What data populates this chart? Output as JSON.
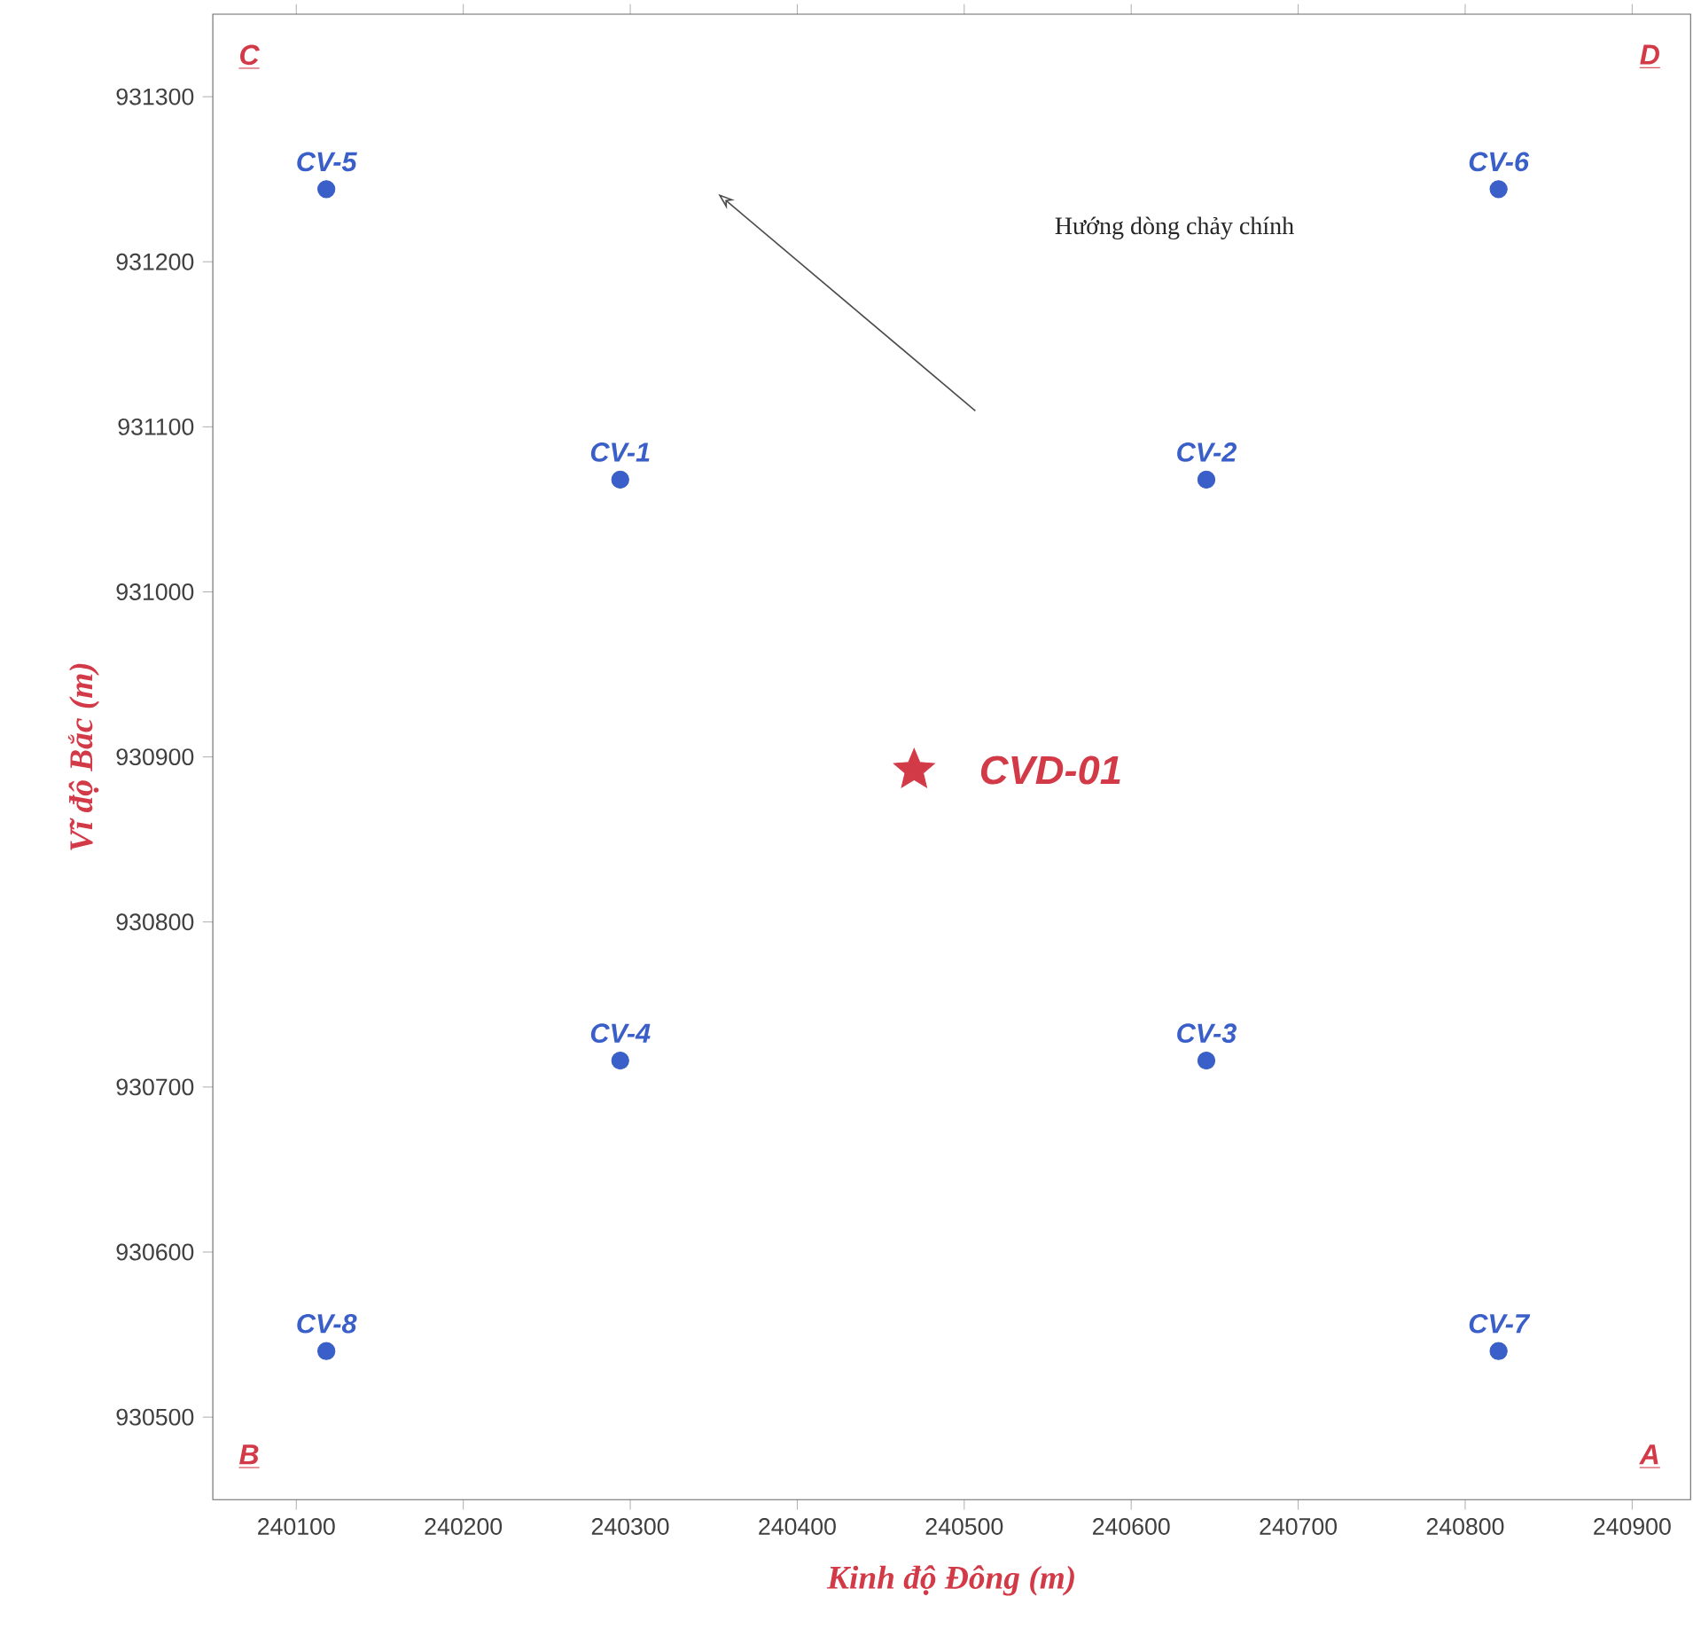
{
  "chart_data": {
    "type": "scatter",
    "xlabel": "Kinh độ Đông (m)",
    "ylabel": "Vĩ độ Bắc (m)",
    "xlim": [
      240050,
      240935
    ],
    "ylim": [
      930450,
      931350
    ],
    "xticks": [
      240100,
      240200,
      240300,
      240400,
      240500,
      240600,
      240700,
      240800,
      240900
    ],
    "yticks": [
      930500,
      930600,
      930700,
      930800,
      930900,
      931000,
      931100,
      931200,
      931300
    ],
    "grid": false,
    "series": [
      {
        "name": "CV-1",
        "color": "#3a5fc8",
        "marker": "circle",
        "x": [
          240294
        ],
        "values": [
          931068
        ]
      },
      {
        "name": "CV-2",
        "color": "#3a5fc8",
        "marker": "circle",
        "x": [
          240645
        ],
        "values": [
          931068
        ]
      },
      {
        "name": "CV-3",
        "color": "#3a5fc8",
        "marker": "circle",
        "x": [
          240645
        ],
        "values": [
          930716
        ]
      },
      {
        "name": "CV-4",
        "color": "#3a5fc8",
        "marker": "circle",
        "x": [
          240294
        ],
        "values": [
          930716
        ]
      },
      {
        "name": "CV-5",
        "color": "#3a5fc8",
        "marker": "circle",
        "x": [
          240118
        ],
        "values": [
          931244
        ]
      },
      {
        "name": "CV-6",
        "color": "#3a5fc8",
        "marker": "circle",
        "x": [
          240820
        ],
        "values": [
          931244
        ]
      },
      {
        "name": "CV-7",
        "color": "#3a5fc8",
        "marker": "circle",
        "x": [
          240820
        ],
        "values": [
          930540
        ]
      },
      {
        "name": "CV-8",
        "color": "#3a5fc8",
        "marker": "circle",
        "x": [
          240118
        ],
        "values": [
          930540
        ]
      },
      {
        "name": "CVD-01",
        "color": "#d33a48",
        "marker": "star",
        "x": [
          240470
        ],
        "values": [
          930892
        ]
      }
    ],
    "annotations": [
      "A",
      "B",
      "C",
      "D",
      "Hướng dòng chảy chính"
    ]
  }
}
